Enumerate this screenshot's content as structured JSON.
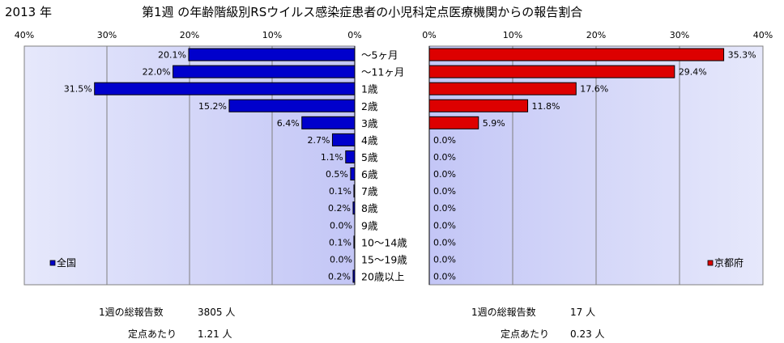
{
  "year_label": "2013 年",
  "title": "第1週 の年齢階級別RSウイルス感染症患者の小児科定点医療機関からの報告割合",
  "chart_data": [
    {
      "type": "bar",
      "orientation": "horizontal",
      "direction": "right-to-left",
      "legend": "全国",
      "legend_position": "bottom-left",
      "color": "#0000CC",
      "xlim": [
        0,
        40
      ],
      "ticks": [
        "40%",
        "30%",
        "20%",
        "10%",
        "0%"
      ],
      "grid": true,
      "categories": [
        "～5ヶ月",
        "～11ヶ月",
        "1歳",
        "2歳",
        "3歳",
        "4歳",
        "5歳",
        "6歳",
        "7歳",
        "8歳",
        "9歳",
        "10～14歳",
        "15～19歳",
        "20歳以上"
      ],
      "values": [
        20.1,
        22.0,
        31.5,
        15.2,
        6.4,
        2.7,
        1.1,
        0.5,
        0.1,
        0.2,
        0.0,
        0.1,
        0.0,
        0.2
      ],
      "labels": [
        "20.1%",
        "22.0%",
        "31.5%",
        "15.2%",
        "6.4%",
        "2.7%",
        "1.1%",
        "0.5%",
        "0.1%",
        "0.2%",
        "0.0%",
        "0.1%",
        "0.0%",
        "0.2%"
      ]
    },
    {
      "type": "bar",
      "orientation": "horizontal",
      "direction": "left-to-right",
      "legend": "京都府",
      "legend_position": "bottom-right",
      "color": "#DD0000",
      "xlim": [
        0,
        40
      ],
      "ticks": [
        "0%",
        "10%",
        "20%",
        "30%",
        "40%"
      ],
      "grid": true,
      "categories": [
        "～5ヶ月",
        "～11ヶ月",
        "1歳",
        "2歳",
        "3歳",
        "4歳",
        "5歳",
        "6歳",
        "7歳",
        "8歳",
        "9歳",
        "10～14歳",
        "15～19歳",
        "20歳以上"
      ],
      "values": [
        35.3,
        29.4,
        17.6,
        11.8,
        5.9,
        0,
        0,
        0,
        0,
        0,
        0,
        0,
        0,
        0
      ],
      "labels": [
        "35.3%",
        "29.4%",
        "17.6%",
        "11.8%",
        "5.9%",
        "0.0%",
        "0.0%",
        "0.0%",
        "0.0%",
        "0.0%",
        "0.0%",
        "0.0%",
        "0.0%",
        "0.0%"
      ]
    }
  ],
  "footer": {
    "left": {
      "reports_label": "1週の総報告数",
      "reports_value": "3805 人",
      "per_site_label": "定点あたり",
      "per_site_value": "1.21 人"
    },
    "right": {
      "reports_label": "1週の総報告数",
      "reports_value": "17 人",
      "per_site_label": "定点あたり",
      "per_site_value": "0.23 人"
    }
  }
}
